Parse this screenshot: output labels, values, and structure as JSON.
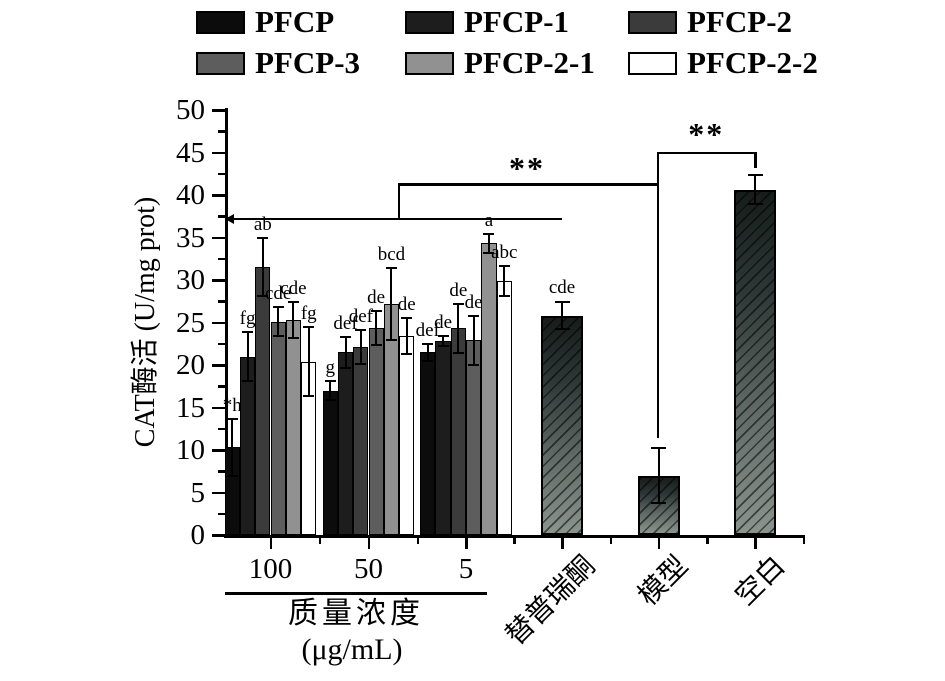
{
  "legend": {
    "items": [
      {
        "label": "PFCP",
        "color": "#0c0c0c"
      },
      {
        "label": "PFCP-1",
        "color": "#1d1d1d"
      },
      {
        "label": "PFCP-2",
        "color": "#3b3b3b"
      },
      {
        "label": "PFCP-3",
        "color": "#5d5d5d"
      },
      {
        "label": "PFCP-2-1",
        "color": "#919191"
      },
      {
        "label": "PFCP-2-2",
        "color": "#ffffff"
      }
    ]
  },
  "chart_data": {
    "type": "bar",
    "title": "",
    "ylabel": "CAT酶活 (U/mg prot)",
    "ylim": [
      0,
      50
    ],
    "y_major_step": 5,
    "y_minor_step": 2.5,
    "xlabel_line1": "质量浓度",
    "xlabel_line2": "(μg/mL)",
    "series": [
      "PFCP",
      "PFCP-1",
      "PFCP-2",
      "PFCP-3",
      "PFCP-2-1",
      "PFCP-2-2"
    ],
    "dose_groups": [
      {
        "label": "100",
        "values": [
          10.3,
          21.0,
          31.5,
          25.1,
          25.3,
          20.4
        ],
        "errors": [
          3.3,
          2.9,
          3.4,
          1.7,
          2.1,
          4.1
        ],
        "letters": [
          "*h",
          "fg",
          "ab",
          "cde",
          "cde",
          "fg"
        ]
      },
      {
        "label": "50",
        "values": [
          17.0,
          21.5,
          22.1,
          24.3,
          27.2,
          23.4
        ],
        "errors": [
          1.1,
          1.8,
          2.0,
          2.0,
          4.2,
          2.1
        ],
        "letters": [
          "g",
          "def",
          "def",
          "de",
          "bcd",
          "de"
        ]
      },
      {
        "label": "5",
        "values": [
          21.5,
          22.8,
          24.3,
          22.9,
          34.3,
          29.9
        ],
        "errors": [
          1.0,
          0.6,
          2.9,
          2.9,
          1.1,
          1.8
        ],
        "letters": [
          "def",
          "de",
          "de",
          "de",
          "a",
          "abc"
        ]
      }
    ],
    "single_bars": [
      {
        "label": "替普瑞酮",
        "value": 25.8,
        "error": 1.6,
        "letter": "cde"
      },
      {
        "label": "模型",
        "value": 7.0,
        "error": 3.2,
        "letter": ""
      },
      {
        "label": "空白",
        "value": 40.6,
        "error": 1.7,
        "letter": ""
      }
    ],
    "annotations": {
      "treatment_line_level": 37.3,
      "brackets": [
        {
          "symbol": "**",
          "level": 41.4,
          "from": "treatment groups",
          "to": "模型",
          "down_to_level": 11.4
        },
        {
          "symbol": "**",
          "level": 45.1,
          "from": "模型",
          "to": "空白",
          "drop_to_level": 43.2
        }
      ]
    }
  }
}
